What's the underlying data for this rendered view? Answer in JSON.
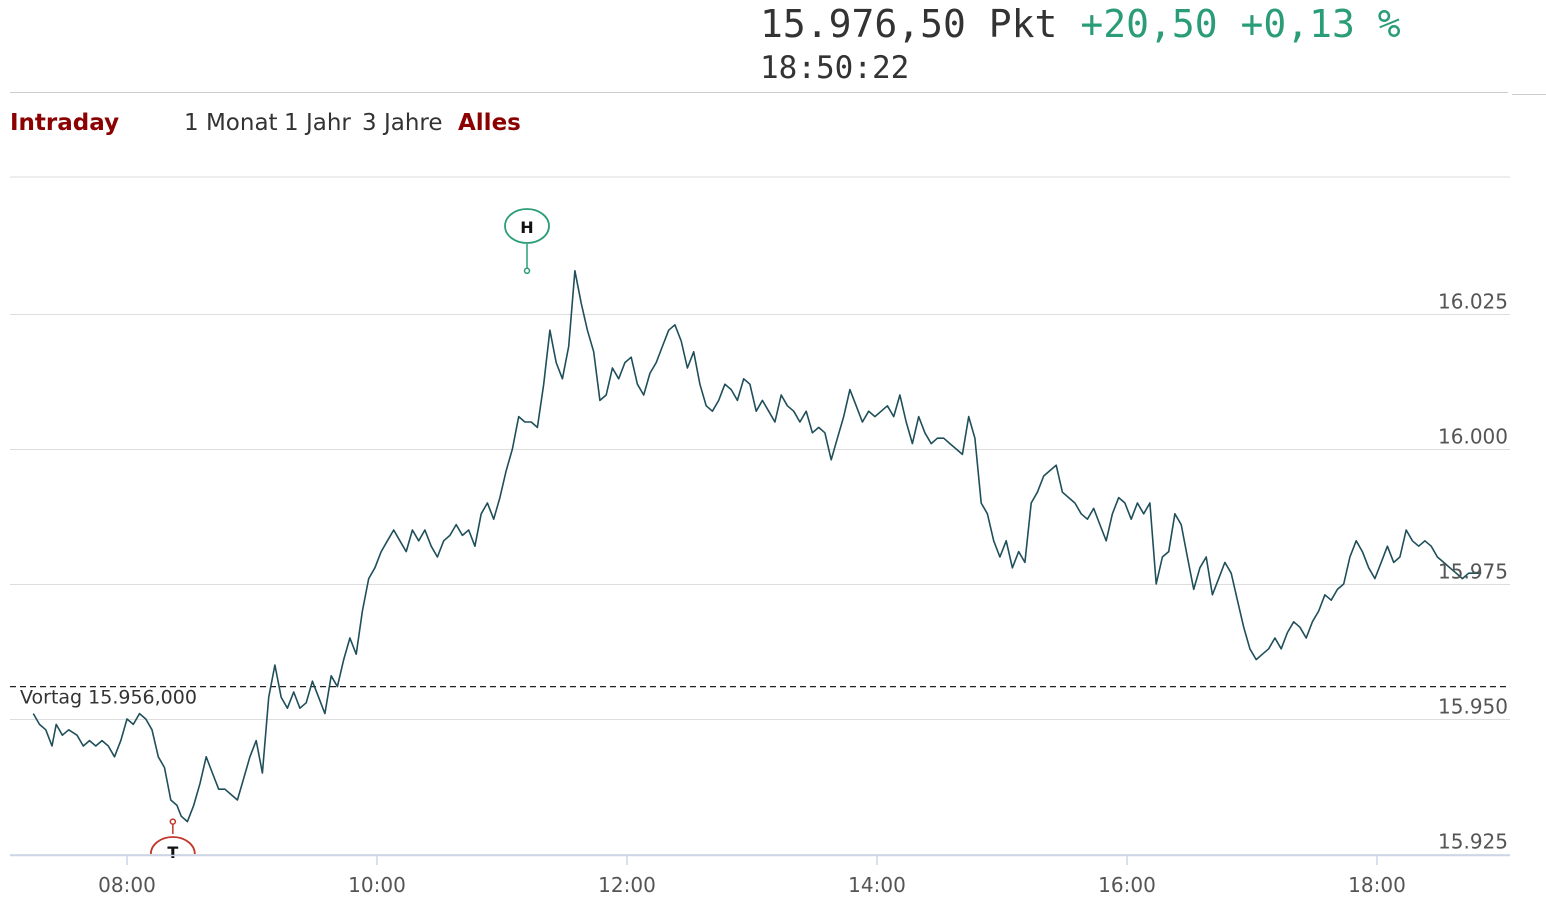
{
  "header": {
    "price": "15.976,50 Pkt",
    "change_abs": "+20,50",
    "change_pct": "+0,13 %",
    "time": "18:50:22"
  },
  "range_buttons": [
    {
      "label": "Intraday",
      "state": "active"
    },
    {
      "label": "1 Monat",
      "state": "normal"
    },
    {
      "label": "1 Jahr",
      "state": "normal"
    },
    {
      "label": "3 Jahre",
      "state": "normal"
    },
    {
      "label": "Alles",
      "state": "accent"
    }
  ],
  "colors": {
    "line": "#1f4f5a",
    "up": "#2a9d78",
    "down": "#c0392b",
    "accent": "#8b0000",
    "grid": "#dddddd"
  },
  "chart_data": {
    "type": "line",
    "title": "",
    "xlabel": "",
    "ylabel": "",
    "x_ticks": [
      "08:00",
      "10:00",
      "12:00",
      "14:00",
      "16:00",
      "18:00"
    ],
    "y_ticks": [
      "16.025",
      "16.000",
      "15.975",
      "15.950",
      "15.925"
    ],
    "y_tick_values": [
      16025,
      16000,
      15975,
      15950,
      15925
    ],
    "ylim": [
      15922.5,
      16050
    ],
    "reference_line": {
      "label": "Vortag 15.956,000",
      "value": 15956
    },
    "high_marker": {
      "label": "H",
      "time": "11:12",
      "value": 16033
    },
    "low_marker": {
      "label": "T",
      "time": "08:22",
      "value": 15931
    },
    "series": [
      {
        "points": [
          [
            "07:15",
            15951
          ],
          [
            "07:18",
            15949
          ],
          [
            "07:21",
            15948
          ],
          [
            "07:24",
            15945
          ],
          [
            "07:26",
            15949
          ],
          [
            "07:29",
            15947
          ],
          [
            "07:32",
            15948
          ],
          [
            "07:36",
            15947
          ],
          [
            "07:39",
            15945
          ],
          [
            "07:42",
            15946
          ],
          [
            "07:45",
            15945
          ],
          [
            "07:48",
            15946
          ],
          [
            "07:51",
            15945
          ],
          [
            "07:54",
            15943
          ],
          [
            "07:57",
            15946
          ],
          [
            "08:00",
            15950
          ],
          [
            "08:03",
            15949
          ],
          [
            "08:06",
            15951
          ],
          [
            "08:09",
            15950
          ],
          [
            "08:12",
            15948
          ],
          [
            "08:15",
            15943
          ],
          [
            "08:18",
            15941
          ],
          [
            "08:21",
            15935
          ],
          [
            "08:24",
            15934
          ],
          [
            "08:26",
            15932
          ],
          [
            "08:29",
            15931
          ],
          [
            "08:32",
            15934
          ],
          [
            "08:35",
            15938
          ],
          [
            "08:38",
            15943
          ],
          [
            "08:41",
            15940
          ],
          [
            "08:44",
            15937
          ],
          [
            "08:47",
            15937
          ],
          [
            "08:50",
            15936
          ],
          [
            "08:53",
            15935
          ],
          [
            "08:56",
            15939
          ],
          [
            "08:59",
            15943
          ],
          [
            "09:02",
            15946
          ],
          [
            "09:05",
            15940
          ],
          [
            "09:08",
            15954
          ],
          [
            "09:11",
            15960
          ],
          [
            "09:14",
            15954
          ],
          [
            "09:17",
            15952
          ],
          [
            "09:20",
            15955
          ],
          [
            "09:23",
            15952
          ],
          [
            "09:26",
            15953
          ],
          [
            "09:29",
            15957
          ],
          [
            "09:32",
            15954
          ],
          [
            "09:35",
            15951
          ],
          [
            "09:38",
            15958
          ],
          [
            "09:41",
            15956
          ],
          [
            "09:44",
            15961
          ],
          [
            "09:47",
            15965
          ],
          [
            "09:50",
            15962
          ],
          [
            "09:53",
            15970
          ],
          [
            "09:56",
            15976
          ],
          [
            "09:59",
            15978
          ],
          [
            "10:02",
            15981
          ],
          [
            "10:05",
            15983
          ],
          [
            "10:08",
            15985
          ],
          [
            "10:11",
            15983
          ],
          [
            "10:14",
            15981
          ],
          [
            "10:17",
            15985
          ],
          [
            "10:20",
            15983
          ],
          [
            "10:23",
            15985
          ],
          [
            "10:26",
            15982
          ],
          [
            "10:29",
            15980
          ],
          [
            "10:32",
            15983
          ],
          [
            "10:35",
            15984
          ],
          [
            "10:38",
            15986
          ],
          [
            "10:41",
            15984
          ],
          [
            "10:44",
            15985
          ],
          [
            "10:47",
            15982
          ],
          [
            "10:50",
            15988
          ],
          [
            "10:53",
            15990
          ],
          [
            "10:56",
            15987
          ],
          [
            "10:59",
            15991
          ],
          [
            "11:02",
            15996
          ],
          [
            "11:05",
            16000
          ],
          [
            "11:08",
            16006
          ],
          [
            "11:11",
            16005
          ],
          [
            "11:14",
            16005
          ],
          [
            "11:17",
            16004
          ],
          [
            "11:20",
            16012
          ],
          [
            "11:23",
            16022
          ],
          [
            "11:26",
            16016
          ],
          [
            "11:29",
            16013
          ],
          [
            "11:32",
            16019
          ],
          [
            "11:35",
            16033
          ],
          [
            "11:38",
            16027
          ],
          [
            "11:41",
            16022
          ],
          [
            "11:44",
            16018
          ],
          [
            "11:47",
            16009
          ],
          [
            "11:50",
            16010
          ],
          [
            "11:53",
            16015
          ],
          [
            "11:56",
            16013
          ],
          [
            "11:59",
            16016
          ],
          [
            "12:02",
            16017
          ],
          [
            "12:05",
            16012
          ],
          [
            "12:08",
            16010
          ],
          [
            "12:11",
            16014
          ],
          [
            "12:14",
            16016
          ],
          [
            "12:17",
            16019
          ],
          [
            "12:20",
            16022
          ],
          [
            "12:23",
            16023
          ],
          [
            "12:26",
            16020
          ],
          [
            "12:29",
            16015
          ],
          [
            "12:32",
            16018
          ],
          [
            "12:35",
            16012
          ],
          [
            "12:38",
            16008
          ],
          [
            "12:41",
            16007
          ],
          [
            "12:44",
            16009
          ],
          [
            "12:47",
            16012
          ],
          [
            "12:50",
            16011
          ],
          [
            "12:53",
            16009
          ],
          [
            "12:56",
            16013
          ],
          [
            "12:59",
            16012
          ],
          [
            "13:02",
            16007
          ],
          [
            "13:05",
            16009
          ],
          [
            "13:08",
            16007
          ],
          [
            "13:11",
            16005
          ],
          [
            "13:14",
            16010
          ],
          [
            "13:17",
            16008
          ],
          [
            "13:20",
            16007
          ],
          [
            "13:23",
            16005
          ],
          [
            "13:26",
            16007
          ],
          [
            "13:29",
            16003
          ],
          [
            "13:32",
            16004
          ],
          [
            "13:35",
            16003
          ],
          [
            "13:38",
            15998
          ],
          [
            "13:41",
            16002
          ],
          [
            "13:44",
            16006
          ],
          [
            "13:47",
            16011
          ],
          [
            "13:50",
            16008
          ],
          [
            "13:53",
            16005
          ],
          [
            "13:56",
            16007
          ],
          [
            "13:59",
            16006
          ],
          [
            "14:02",
            16007
          ],
          [
            "14:05",
            16008
          ],
          [
            "14:08",
            16006
          ],
          [
            "14:11",
            16010
          ],
          [
            "14:14",
            16005
          ],
          [
            "14:17",
            16001
          ],
          [
            "14:20",
            16006
          ],
          [
            "14:23",
            16003
          ],
          [
            "14:26",
            16001
          ],
          [
            "14:29",
            16002
          ],
          [
            "14:32",
            16002
          ],
          [
            "14:35",
            16001
          ],
          [
            "14:38",
            16000
          ],
          [
            "14:41",
            15999
          ],
          [
            "14:44",
            16006
          ],
          [
            "14:47",
            16002
          ],
          [
            "14:50",
            15990
          ],
          [
            "14:53",
            15988
          ],
          [
            "14:56",
            15983
          ],
          [
            "14:59",
            15980
          ],
          [
            "15:02",
            15983
          ],
          [
            "15:05",
            15978
          ],
          [
            "15:08",
            15981
          ],
          [
            "15:11",
            15979
          ],
          [
            "15:14",
            15990
          ],
          [
            "15:17",
            15992
          ],
          [
            "15:20",
            15995
          ],
          [
            "15:23",
            15996
          ],
          [
            "15:26",
            15997
          ],
          [
            "15:29",
            15992
          ],
          [
            "15:32",
            15991
          ],
          [
            "15:35",
            15990
          ],
          [
            "15:38",
            15988
          ],
          [
            "15:41",
            15987
          ],
          [
            "15:44",
            15989
          ],
          [
            "15:47",
            15986
          ],
          [
            "15:50",
            15983
          ],
          [
            "15:53",
            15988
          ],
          [
            "15:56",
            15991
          ],
          [
            "15:59",
            15990
          ],
          [
            "16:02",
            15987
          ],
          [
            "16:05",
            15990
          ],
          [
            "16:08",
            15988
          ],
          [
            "16:11",
            15990
          ],
          [
            "16:14",
            15975
          ],
          [
            "16:17",
            15980
          ],
          [
            "16:20",
            15981
          ],
          [
            "16:23",
            15988
          ],
          [
            "16:26",
            15986
          ],
          [
            "16:29",
            15980
          ],
          [
            "16:32",
            15974
          ],
          [
            "16:35",
            15978
          ],
          [
            "16:38",
            15980
          ],
          [
            "16:41",
            15973
          ],
          [
            "16:44",
            15976
          ],
          [
            "16:47",
            15979
          ],
          [
            "16:50",
            15977
          ],
          [
            "16:53",
            15972
          ],
          [
            "16:56",
            15967
          ],
          [
            "16:59",
            15963
          ],
          [
            "17:02",
            15961
          ],
          [
            "17:05",
            15962
          ],
          [
            "17:08",
            15963
          ],
          [
            "17:11",
            15965
          ],
          [
            "17:14",
            15963
          ],
          [
            "17:17",
            15966
          ],
          [
            "17:20",
            15968
          ],
          [
            "17:23",
            15967
          ],
          [
            "17:26",
            15965
          ],
          [
            "17:29",
            15968
          ],
          [
            "17:32",
            15970
          ],
          [
            "17:35",
            15973
          ],
          [
            "17:38",
            15972
          ],
          [
            "17:41",
            15974
          ],
          [
            "17:44",
            15975
          ],
          [
            "17:47",
            15980
          ],
          [
            "17:50",
            15983
          ],
          [
            "17:53",
            15981
          ],
          [
            "17:56",
            15978
          ],
          [
            "17:59",
            15976
          ],
          [
            "18:02",
            15979
          ],
          [
            "18:05",
            15982
          ],
          [
            "18:08",
            15979
          ],
          [
            "18:11",
            15980
          ],
          [
            "18:14",
            15985
          ],
          [
            "18:17",
            15983
          ],
          [
            "18:20",
            15982
          ],
          [
            "18:23",
            15983
          ],
          [
            "18:26",
            15982
          ],
          [
            "18:29",
            15980
          ],
          [
            "18:32",
            15979
          ],
          [
            "18:35",
            15978
          ],
          [
            "18:38",
            15977
          ],
          [
            "18:41",
            15976
          ],
          [
            "18:44",
            15977
          ],
          [
            "18:47",
            15977
          ],
          [
            "18:50",
            15977
          ]
        ]
      }
    ]
  }
}
